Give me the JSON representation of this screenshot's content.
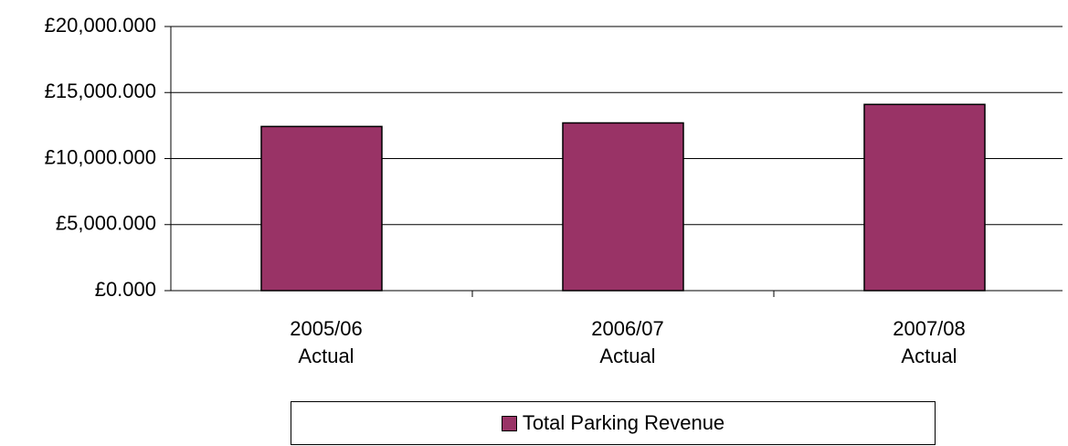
{
  "chart_data": {
    "type": "bar",
    "categories": [
      "2005/06 Actual",
      "2006/07 Actual",
      "2007/08 Actual"
    ],
    "series": [
      {
        "name": "Total Parking Revenue",
        "color": "#993366",
        "values": [
          12430,
          12700,
          14100
        ]
      }
    ],
    "ylim": [
      0,
      20000
    ],
    "yticks": [
      {
        "value": 0,
        "label": "£0.000"
      },
      {
        "value": 5000,
        "label": "£5,000.000"
      },
      {
        "value": 10000,
        "label": "£10,000.000"
      },
      {
        "value": 15000,
        "label": "£15,000.000"
      },
      {
        "value": 20000,
        "label": "£20,000.000"
      }
    ],
    "grid": true,
    "legend": "bottom"
  }
}
